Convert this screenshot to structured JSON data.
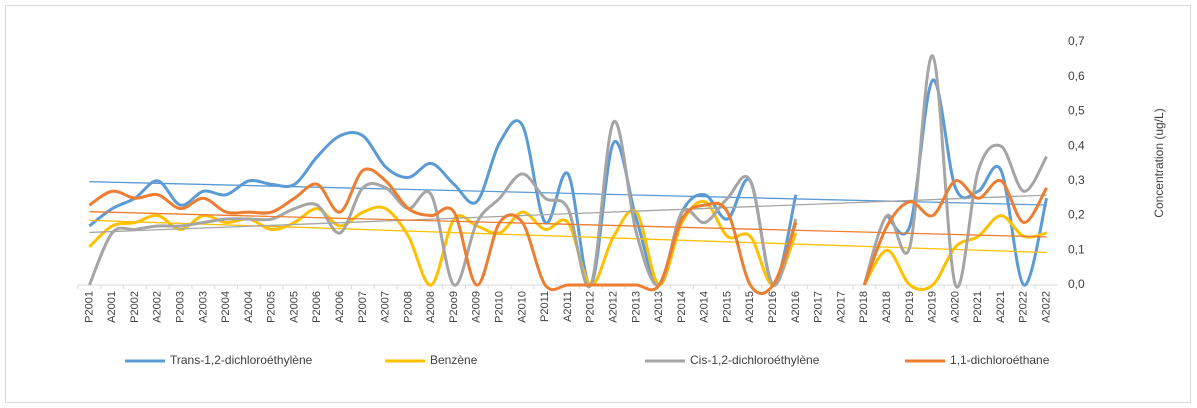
{
  "chart_data": {
    "type": "line",
    "y_axis_label": "Concentration  (ug/L)",
    "categories": [
      "P2001",
      "A2001",
      "P2002",
      "A2002",
      "P2003",
      "A2003",
      "P2004",
      "A2004",
      "P2005",
      "A2005",
      "P2006",
      "A2006",
      "P2007",
      "A2007",
      "P2008",
      "A2008",
      "P2oo9",
      "A2009",
      "P2010",
      "A2010",
      "P2011",
      "A2011",
      "P2012",
      "A2012",
      "P2013",
      "A2013",
      "P2014",
      "A2014",
      "P2015",
      "A2015",
      "P2016",
      "A2016",
      "P2017",
      "A2017",
      "P2018",
      "A2018",
      "P2019",
      "A2019",
      "A2020",
      "P2021",
      "A2021",
      "P2022",
      "A2022"
    ],
    "series": [
      {
        "name": "Trans-1,2-dichloroéthylène",
        "color": "#5b9bd5",
        "values": [
          0.17,
          0.22,
          0.25,
          0.3,
          0.23,
          0.27,
          0.26,
          0.3,
          0.29,
          0.29,
          0.37,
          0.43,
          0.43,
          0.34,
          0.31,
          0.35,
          0.29,
          0.24,
          0.41,
          0.46,
          0.18,
          0.32,
          0.0,
          0.41,
          0.19,
          0.0,
          0.21,
          0.26,
          0.19,
          0.3,
          0.0,
          0.26,
          null,
          null,
          null,
          0.2,
          0.17,
          0.59,
          0.28,
          0.27,
          0.33,
          0.0,
          0.25
        ]
      },
      {
        "name": "Benzène",
        "color": "#ffc000",
        "values": [
          0.11,
          0.17,
          0.18,
          0.2,
          0.16,
          0.2,
          0.18,
          0.19,
          0.16,
          0.18,
          0.22,
          0.17,
          0.21,
          0.22,
          0.14,
          0.0,
          0.19,
          0.17,
          0.15,
          0.21,
          0.16,
          0.18,
          0.0,
          0.14,
          0.21,
          0.0,
          0.18,
          0.24,
          0.14,
          0.14,
          0.0,
          0.15,
          null,
          null,
          0.0,
          0.1,
          0.0,
          0.0,
          0.11,
          0.14,
          0.2,
          0.14,
          0.15
        ]
      },
      {
        "name": "Cis-1,2-dichloroéthylène",
        "color": "#a5a5a5",
        "values": [
          0.0,
          0.15,
          0.16,
          0.17,
          0.17,
          0.18,
          0.19,
          0.19,
          0.19,
          0.22,
          0.23,
          0.15,
          0.28,
          0.28,
          0.22,
          0.26,
          0.0,
          0.18,
          0.25,
          0.32,
          0.25,
          0.22,
          0.0,
          0.47,
          0.15,
          0.0,
          0.21,
          0.18,
          0.25,
          0.3,
          0.0,
          0.19,
          null,
          null,
          0.0,
          0.2,
          0.11,
          0.66,
          0.0,
          0.33,
          0.4,
          0.27,
          0.37
        ]
      },
      {
        "name": "1,1-dichloroéthane",
        "color": "#ed7d31",
        "values": [
          0.23,
          0.27,
          0.25,
          0.26,
          0.22,
          0.25,
          0.21,
          0.21,
          0.21,
          0.25,
          0.29,
          0.21,
          0.33,
          0.3,
          0.22,
          0.2,
          0.21,
          0.0,
          0.18,
          0.18,
          0.0,
          0.0,
          0.0,
          0.0,
          0.0,
          0.0,
          0.19,
          0.23,
          0.21,
          0.0,
          0.0,
          0.18,
          null,
          null,
          0.0,
          0.17,
          0.24,
          0.2,
          0.3,
          0.25,
          0.3,
          0.18,
          0.28
        ]
      }
    ],
    "ylim": [
      0,
      0.7
    ],
    "yticks": [
      {
        "value": 0,
        "label": "0,0"
      },
      {
        "value": 0.1,
        "label": "0,1"
      },
      {
        "value": 0.2,
        "label": "0,2"
      },
      {
        "value": 0.3,
        "label": "0,3"
      },
      {
        "value": 0.4,
        "label": "0,4"
      },
      {
        "value": 0.5,
        "label": "0,5"
      },
      {
        "value": 0.6,
        "label": "0,6"
      },
      {
        "value": 0.7,
        "label": "0,7"
      }
    ],
    "trendlines": true,
    "smooth": true,
    "legend": "bottom"
  }
}
